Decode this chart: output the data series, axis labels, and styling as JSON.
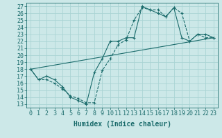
{
  "xlabel": "Humidex (Indice chaleur)",
  "background_color": "#cce8e8",
  "line_color": "#1a6b6b",
  "xlim": [
    -0.5,
    23.5
  ],
  "ylim": [
    12.5,
    27.5
  ],
  "xticks": [
    0,
    1,
    2,
    3,
    4,
    5,
    6,
    7,
    8,
    9,
    10,
    11,
    12,
    13,
    14,
    15,
    16,
    17,
    18,
    19,
    20,
    21,
    22,
    23
  ],
  "yticks": [
    13,
    14,
    15,
    16,
    17,
    18,
    19,
    20,
    21,
    22,
    23,
    24,
    25,
    26,
    27
  ],
  "grid_color": "#aad4d4",
  "series1_x": [
    0,
    1,
    2,
    3,
    4,
    5,
    6,
    7,
    8,
    9,
    10,
    11,
    12,
    13,
    14,
    15,
    16,
    17,
    18,
    19,
    20,
    21,
    22,
    23
  ],
  "series1_y": [
    18.0,
    16.5,
    16.5,
    16.0,
    15.2,
    14.2,
    13.8,
    13.2,
    13.2,
    17.8,
    19.5,
    21.5,
    22.2,
    25.0,
    26.8,
    26.5,
    26.5,
    25.5,
    26.8,
    26.0,
    22.0,
    23.0,
    22.5,
    22.5
  ],
  "series2_x": [
    0,
    1,
    2,
    3,
    4,
    5,
    6,
    7,
    8,
    9,
    10,
    11,
    12,
    13,
    14,
    15,
    16,
    17,
    18,
    19,
    20,
    21,
    22,
    23
  ],
  "series2_y": [
    18.0,
    16.5,
    17.0,
    16.5,
    15.5,
    14.0,
    13.5,
    13.0,
    17.5,
    19.5,
    22.0,
    22.0,
    22.5,
    22.5,
    27.0,
    26.5,
    26.0,
    25.5,
    26.8,
    22.5,
    22.0,
    23.0,
    23.0,
    22.5
  ],
  "series3_x": [
    0,
    23
  ],
  "series3_y": [
    18.0,
    22.5
  ],
  "xlabel_fontsize": 7,
  "tick_fontsize": 6
}
